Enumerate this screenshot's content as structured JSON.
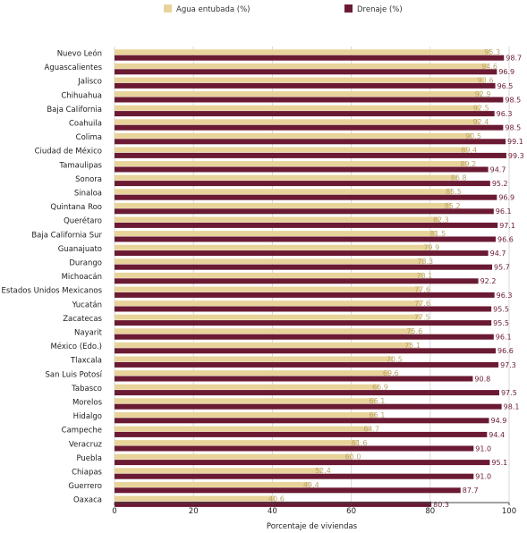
{
  "chart_data": {
    "type": "bar",
    "orientation": "horizontal",
    "title": "",
    "xlabel": "Porcentaje de viviendas",
    "ylabel": "",
    "xlim": [
      0,
      100
    ],
    "xticks": [
      0,
      20,
      40,
      60,
      80,
      100
    ],
    "grid": true,
    "legend_position": "top",
    "categories": [
      "Nuevo León",
      "Aguascalientes",
      "Jalisco",
      "Chihuahua",
      "Baja California",
      "Coahuila",
      "Colima",
      "Ciudad de México",
      "Tamaulipas",
      "Sonora",
      "Sinaloa",
      "Quintana Roo",
      "Querétaro",
      "Baja California Sur",
      "Guanajuato",
      "Durango",
      "Michoacán",
      "Estados Unidos Mexicanos",
      "Yucatán",
      "Zacatecas",
      "Nayarit",
      "México (Edo.)",
      "Tlaxcala",
      "San Luis Potosí",
      "Tabasco",
      "Morelos",
      "Hidalgo",
      "Campeche",
      "Veracruz",
      "Puebla",
      "Chiapas",
      "Guerrero",
      "Oaxaca"
    ],
    "series": [
      {
        "name": "Agua entubada (%)",
        "color": "#e8d49a",
        "label_color": "#b8a46a",
        "values": [
          95.3,
          94.6,
          93.6,
          92.9,
          92.5,
          92.4,
          90.5,
          89.4,
          89.2,
          86.8,
          85.5,
          85.2,
          82.3,
          81.5,
          79.9,
          78.3,
          78.1,
          77.6,
          77.6,
          77.5,
          75.6,
          75.1,
          70.5,
          69.6,
          66.9,
          66.1,
          66.1,
          64.7,
          61.6,
          60.0,
          52.4,
          49.4,
          40.6
        ]
      },
      {
        "name": "Drenaje (%)",
        "color": "#6b1a33",
        "label_color": "#6b1a33",
        "values": [
          98.7,
          96.9,
          96.5,
          98.5,
          96.3,
          98.5,
          99.1,
          99.3,
          94.7,
          95.2,
          96.9,
          96.1,
          97.1,
          96.6,
          94.7,
          95.7,
          92.2,
          96.3,
          95.5,
          95.5,
          96.1,
          96.6,
          97.3,
          90.8,
          97.5,
          98.1,
          94.9,
          94.4,
          91.0,
          95.1,
          91.0,
          87.7,
          80.3
        ]
      }
    ]
  }
}
